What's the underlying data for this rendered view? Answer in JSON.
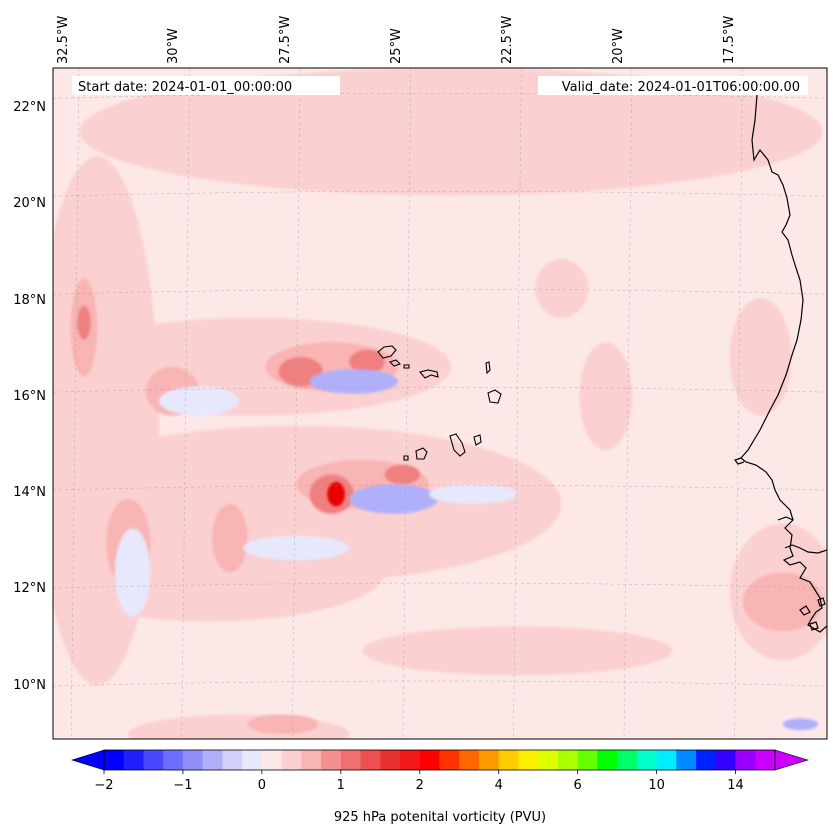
{
  "map": {
    "start_date": "Start date: 2024-01-01_00:00:00",
    "valid_date": "Valid_date: 2024-01-01T06:00:00.00",
    "lon_labels": [
      "32.5°W",
      "30°W",
      "27.5°W",
      "25°W",
      "22.5°W",
      "20°W",
      "17.5°W"
    ],
    "lat_labels": [
      "22°N",
      "20°N",
      "18°N",
      "16°N",
      "14°N",
      "12°N",
      "10°N"
    ],
    "extent": {
      "lon_min": -33.0,
      "lon_max": -15.5,
      "lat_min": 9.0,
      "lat_max": 22.7
    },
    "background_color": "#fde8e8",
    "fields": [
      {
        "level": 0.25,
        "color": "#fbd0d0",
        "areas": [
          {
            "lon": -24,
            "lat": 21.4,
            "rx": 8.4,
            "ry": 1.3
          },
          {
            "lon": -32.0,
            "lat": 15.5,
            "rx": 1.4,
            "ry": 5.4
          },
          {
            "lon": -28.5,
            "lat": 16.6,
            "rx": 4.5,
            "ry": 1.0
          },
          {
            "lon": -27.5,
            "lat": 13.8,
            "rx": 6.0,
            "ry": 1.6
          },
          {
            "lon": -29.5,
            "lat": 12.4,
            "rx": 4.0,
            "ry": 1.0
          },
          {
            "lon": -22.5,
            "lat": 10.8,
            "rx": 3.5,
            "ry": 0.5
          },
          {
            "lon": -16.5,
            "lat": 12.0,
            "rx": 1.2,
            "ry": 1.4
          },
          {
            "lon": -20.5,
            "lat": 16.0,
            "rx": 0.6,
            "ry": 1.1
          },
          {
            "lon": -17.0,
            "lat": 16.8,
            "rx": 0.7,
            "ry": 1.2
          },
          {
            "lon": -21.5,
            "lat": 18.2,
            "rx": 0.6,
            "ry": 0.6
          },
          {
            "lon": -28.8,
            "lat": 9.1,
            "rx": 2.5,
            "ry": 0.4
          }
        ]
      },
      {
        "level": 0.5,
        "color": "#f9b4b4",
        "areas": [
          {
            "lon": -32.3,
            "lat": 17.4,
            "rx": 0.3,
            "ry": 1.0
          },
          {
            "lon": -30.3,
            "lat": 16.1,
            "rx": 0.6,
            "ry": 0.5
          },
          {
            "lon": -29.0,
            "lat": 13.1,
            "rx": 0.4,
            "ry": 0.7
          },
          {
            "lon": -31.3,
            "lat": 13.0,
            "rx": 0.5,
            "ry": 0.9
          },
          {
            "lon": -26.7,
            "lat": 16.6,
            "rx": 1.5,
            "ry": 0.5
          },
          {
            "lon": -26.0,
            "lat": 14.2,
            "rx": 1.5,
            "ry": 0.5
          },
          {
            "lon": -16.5,
            "lat": 11.8,
            "rx": 0.9,
            "ry": 0.6
          },
          {
            "lon": -27.8,
            "lat": 9.3,
            "rx": 0.8,
            "ry": 0.2
          }
        ]
      },
      {
        "level": 1.0,
        "color": "#f08080",
        "areas": [
          {
            "lon": -32.3,
            "lat": 17.5,
            "rx": 0.15,
            "ry": 0.35
          },
          {
            "lon": -27.4,
            "lat": 16.5,
            "rx": 0.5,
            "ry": 0.3
          },
          {
            "lon": -25.9,
            "lat": 16.7,
            "rx": 0.4,
            "ry": 0.25
          },
          {
            "lon": -26.7,
            "lat": 14.0,
            "rx": 0.5,
            "ry": 0.4
          },
          {
            "lon": -25.1,
            "lat": 14.4,
            "rx": 0.4,
            "ry": 0.2
          }
        ]
      },
      {
        "level": 1.5,
        "color": "#e60000",
        "areas": [
          {
            "lon": -26.6,
            "lat": 14.0,
            "rx": 0.2,
            "ry": 0.25
          }
        ]
      },
      {
        "level": -0.5,
        "color": "#b0b0fa",
        "areas": [
          {
            "lon": -26.2,
            "lat": 16.3,
            "rx": 1.0,
            "ry": 0.25
          },
          {
            "lon": -25.3,
            "lat": 13.9,
            "rx": 1.0,
            "ry": 0.3
          },
          {
            "lon": -16.1,
            "lat": 9.3,
            "rx": 0.4,
            "ry": 0.12
          }
        ]
      },
      {
        "level": -0.25,
        "color": "#e8e8fd",
        "areas": [
          {
            "lon": -29.7,
            "lat": 15.9,
            "rx": 0.9,
            "ry": 0.3
          },
          {
            "lon": -27.5,
            "lat": 12.9,
            "rx": 1.2,
            "ry": 0.25
          },
          {
            "lon": -31.2,
            "lat": 12.4,
            "rx": 0.4,
            "ry": 0.9
          },
          {
            "lon": -23.5,
            "lat": 14.0,
            "rx": 1.0,
            "ry": 0.2
          }
        ]
      }
    ],
    "coastline_color": "#000000"
  },
  "colorbar": {
    "label": "925 hPa potenital vorticity (PVU)",
    "tick_labels": [
      "−2",
      "−1",
      "0",
      "1",
      "2",
      "4",
      "6",
      "10",
      "14"
    ],
    "colors": [
      "#0000ff",
      "#2020ff",
      "#4848ff",
      "#6e6efd",
      "#9090fb",
      "#b0b0fa",
      "#d0d0fb",
      "#e8e8fd",
      "#fde8e8",
      "#fbd0d0",
      "#f9b4b4",
      "#f49090",
      "#f07070",
      "#ec5050",
      "#e83030",
      "#f21818",
      "#ff0000",
      "#ff3300",
      "#ff6600",
      "#ff9900",
      "#ffcc00",
      "#ffee00",
      "#ddff00",
      "#aaff00",
      "#66ff00",
      "#00ff00",
      "#00ff66",
      "#00ffcc",
      "#00eeff",
      "#0088ff",
      "#0022ff",
      "#3300ff",
      "#9900ff",
      "#cc00ff"
    ],
    "under_color": "#0000ff",
    "over_color": "#cc00ff"
  }
}
